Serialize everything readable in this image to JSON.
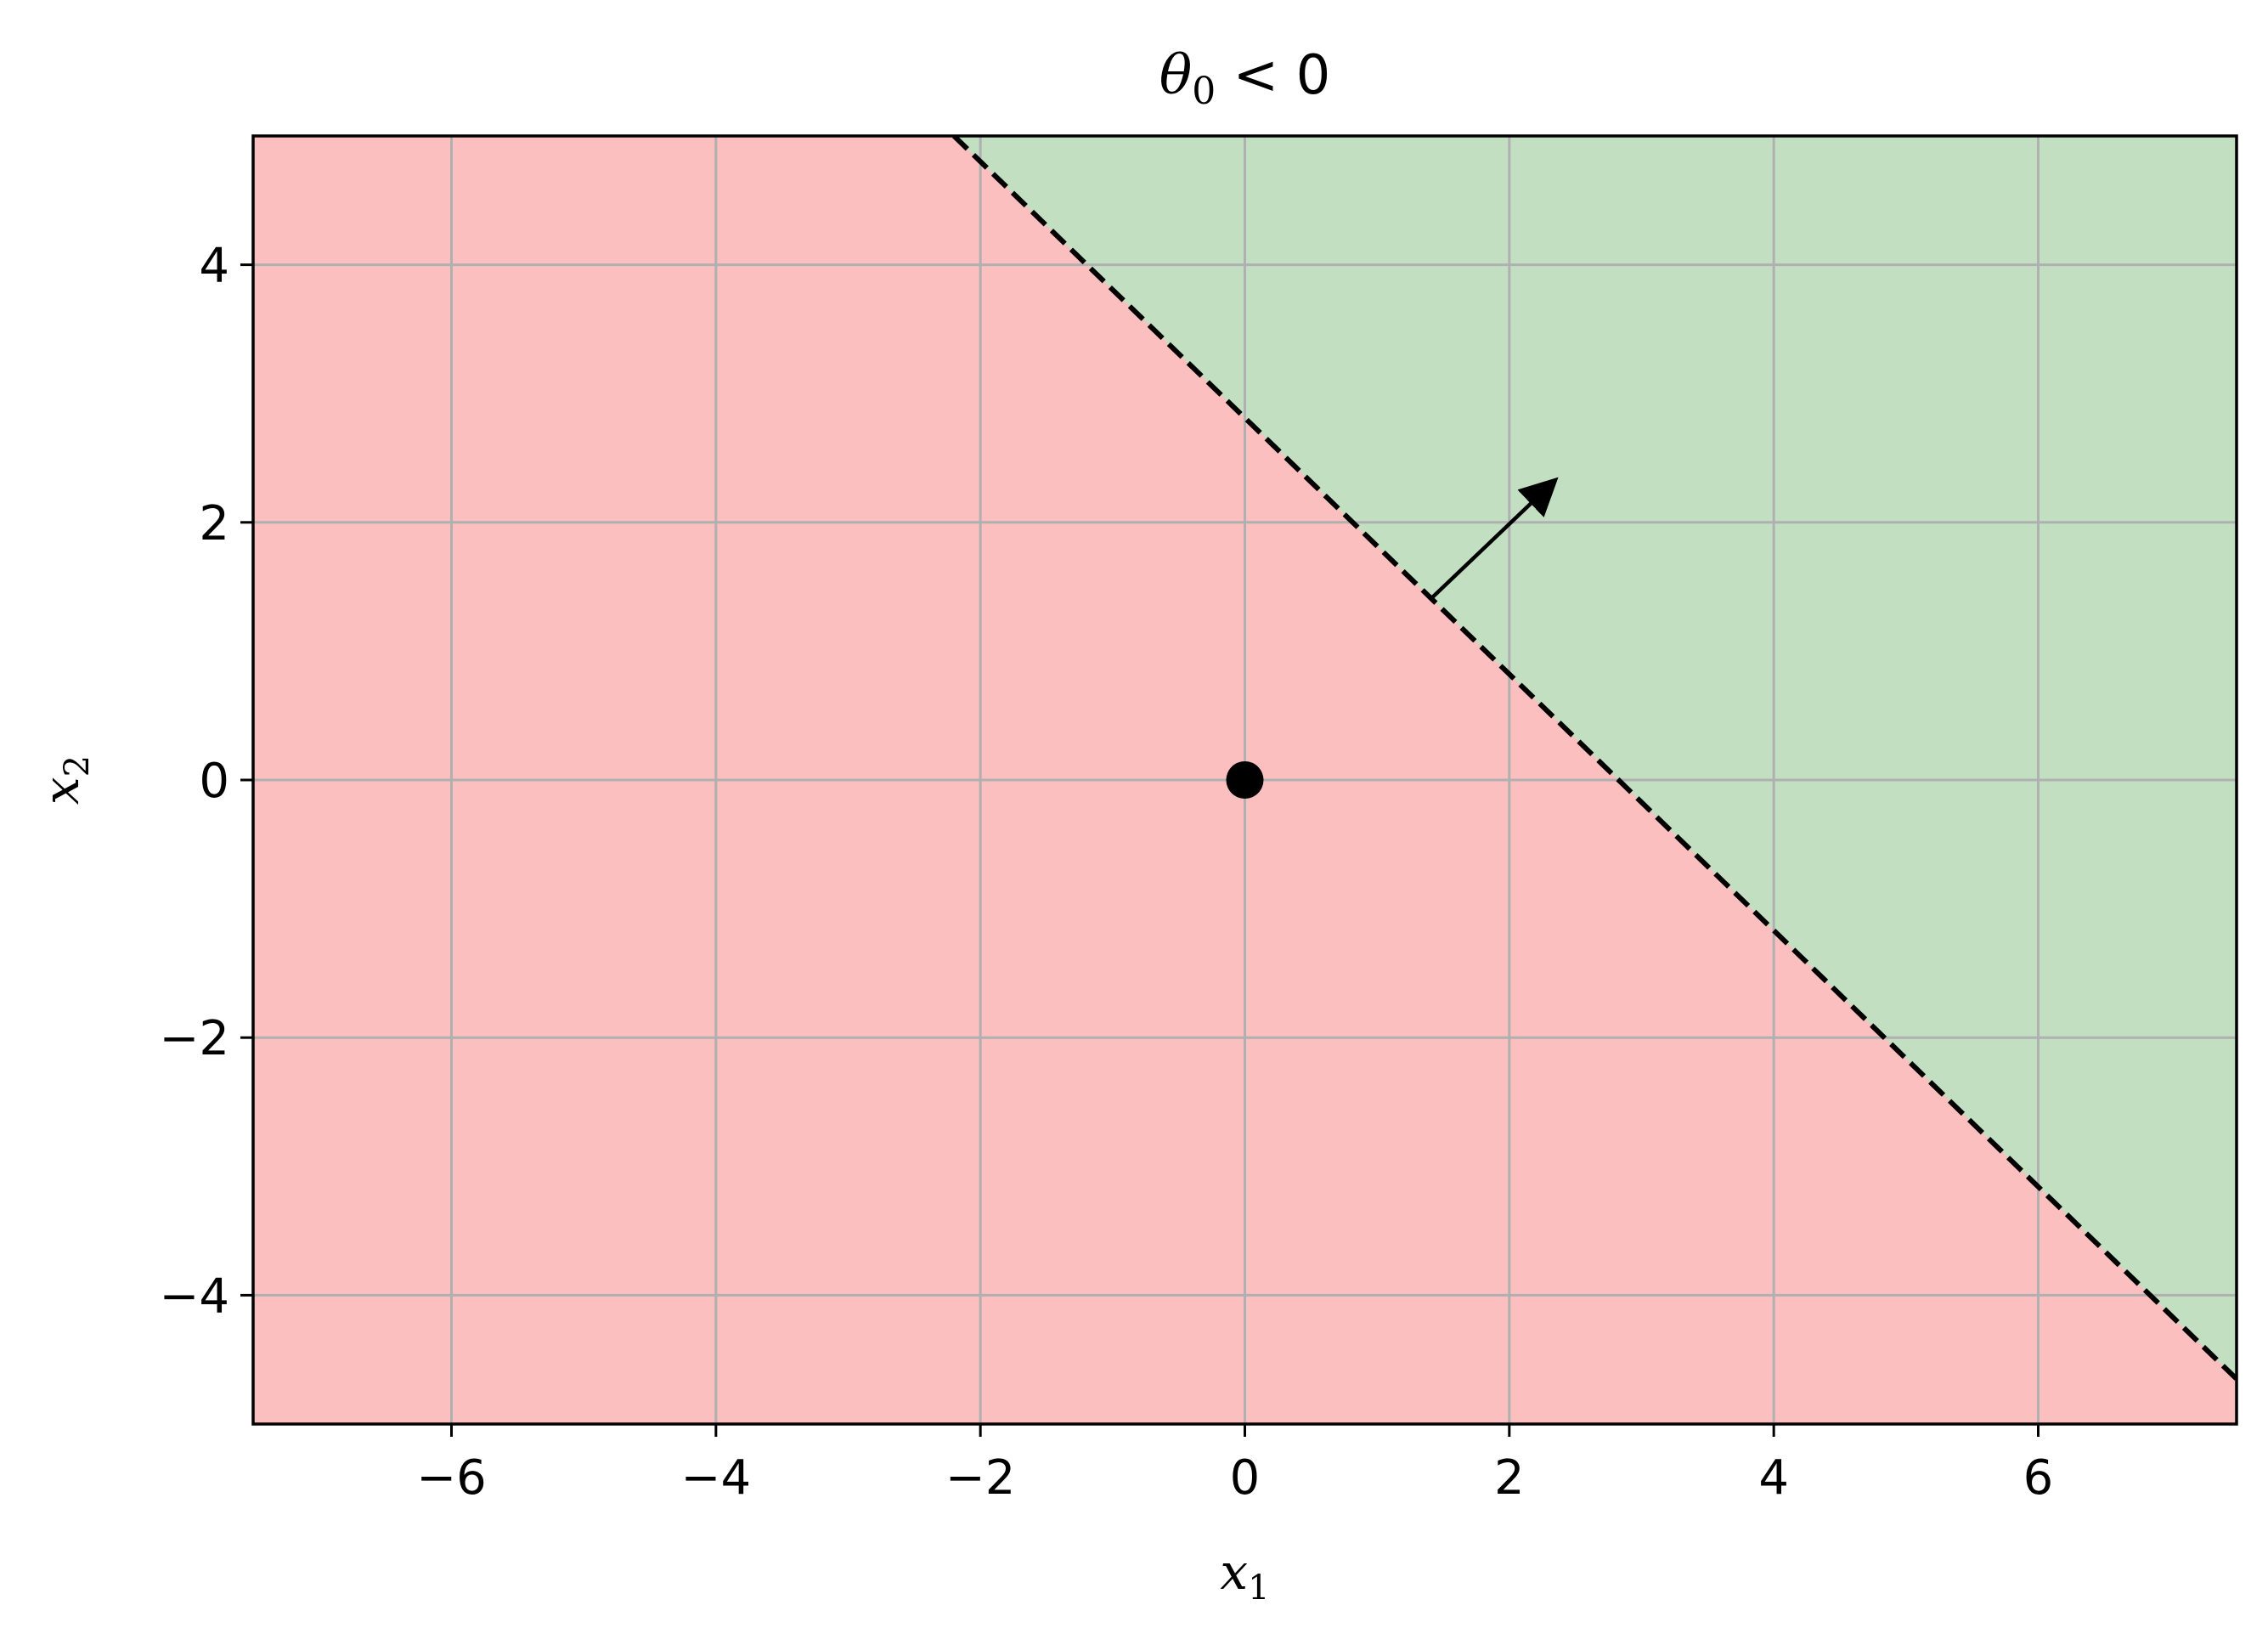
{
  "chart_data": {
    "type": "line",
    "title": {
      "symbol": "θ",
      "subscript": "0",
      "relation": " < 0"
    },
    "xlabel": {
      "symbol": "x",
      "subscript": "1"
    },
    "ylabel": {
      "symbol": "x",
      "subscript": "2"
    },
    "xlim": [
      -7.5,
      7.5
    ],
    "ylim": [
      -5,
      5
    ],
    "xticks": [
      -6,
      -4,
      -2,
      0,
      2,
      4,
      6
    ],
    "yticks": [
      -4,
      -2,
      0,
      2,
      4
    ],
    "xtick_labels": [
      "−6",
      "−4",
      "−2",
      "0",
      "2",
      "4",
      "6"
    ],
    "ytick_labels": [
      "−4",
      "−2",
      "0",
      "2",
      "4"
    ],
    "grid": true,
    "regions": {
      "negative_color": "#fcbfbf",
      "positive_color": "#c2dfc2"
    },
    "decision_boundary": {
      "points": [
        [
          -2.2,
          5.0
        ],
        [
          7.5,
          -4.65
        ]
      ],
      "style": "dashed",
      "color": "#000000"
    },
    "normal_vector": {
      "from": [
        1.4,
        1.4
      ],
      "to": [
        2.35,
        2.33
      ],
      "color": "#000000"
    },
    "origin_point": {
      "x": 0,
      "y": 0,
      "color": "#000000"
    },
    "colors": {
      "grid": "#b0b0b0",
      "axes": "#000000"
    }
  }
}
